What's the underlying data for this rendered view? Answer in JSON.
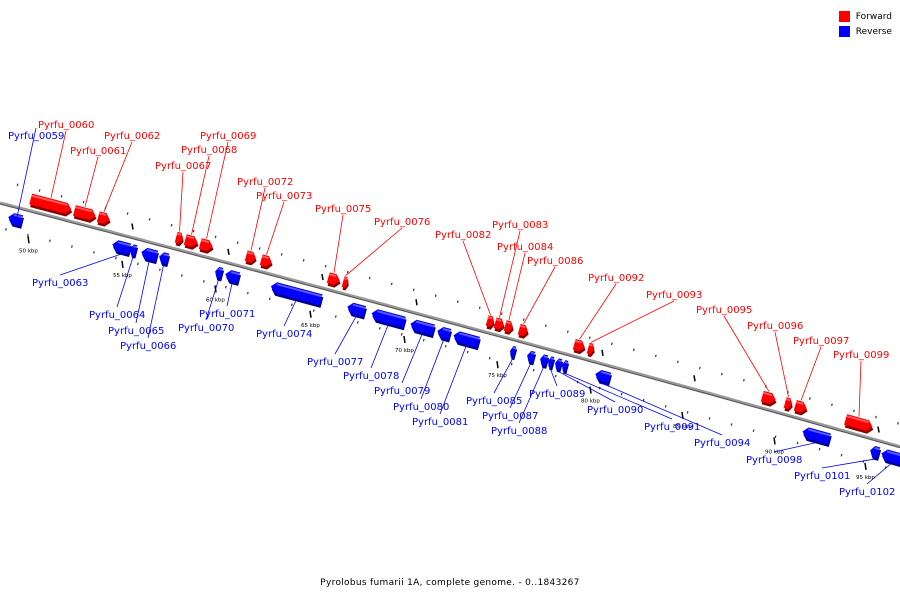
{
  "legend": [
    {
      "label": "Forward",
      "color": "#ff0000"
    },
    {
      "label": "Reverse",
      "color": "#0000ff"
    }
  ],
  "caption": "Pyrolobus fumarii 1A, complete genome. - 0..1843267",
  "colors": {
    "forward": "#ff0000",
    "reverse": "#0000ff",
    "backbone": "#8a8a8a"
  },
  "scale_labels": [
    "50 kbp",
    "55 kbp",
    "60 kbp",
    "65 kbp",
    "70 kbp",
    "75 kbp",
    "80 kbp",
    "85 kbp",
    "90 kbp",
    "95 kbp"
  ],
  "genes": [
    {
      "name": "Pyrfu_0059",
      "strand": "reverse"
    },
    {
      "name": "Pyrfu_0060",
      "strand": "forward"
    },
    {
      "name": "Pyrfu_0061",
      "strand": "forward"
    },
    {
      "name": "Pyrfu_0062",
      "strand": "forward"
    },
    {
      "name": "Pyrfu_0063",
      "strand": "reverse"
    },
    {
      "name": "Pyrfu_0064",
      "strand": "reverse"
    },
    {
      "name": "Pyrfu_0065",
      "strand": "reverse"
    },
    {
      "name": "Pyrfu_0066",
      "strand": "reverse"
    },
    {
      "name": "Pyrfu_0067",
      "strand": "forward"
    },
    {
      "name": "Pyrfu_0068",
      "strand": "forward"
    },
    {
      "name": "Pyrfu_0069",
      "strand": "forward"
    },
    {
      "name": "Pyrfu_0070",
      "strand": "reverse"
    },
    {
      "name": "Pyrfu_0071",
      "strand": "reverse"
    },
    {
      "name": "Pyrfu_0072",
      "strand": "forward"
    },
    {
      "name": "Pyrfu_0073",
      "strand": "forward"
    },
    {
      "name": "Pyrfu_0074",
      "strand": "reverse"
    },
    {
      "name": "Pyrfu_0075",
      "strand": "forward"
    },
    {
      "name": "Pyrfu_0076",
      "strand": "forward"
    },
    {
      "name": "Pyrfu_0077",
      "strand": "reverse"
    },
    {
      "name": "Pyrfu_0078",
      "strand": "reverse"
    },
    {
      "name": "Pyrfu_0079",
      "strand": "reverse"
    },
    {
      "name": "Pyrfu_0080",
      "strand": "reverse"
    },
    {
      "name": "Pyrfu_0081",
      "strand": "reverse"
    },
    {
      "name": "Pyrfu_0082",
      "strand": "forward"
    },
    {
      "name": "Pyrfu_0083",
      "strand": "forward"
    },
    {
      "name": "Pyrfu_0084",
      "strand": "forward"
    },
    {
      "name": "Pyrfu_0085",
      "strand": "reverse"
    },
    {
      "name": "Pyrfu_0086",
      "strand": "forward"
    },
    {
      "name": "Pyrfu_0087",
      "strand": "reverse"
    },
    {
      "name": "Pyrfu_0088",
      "strand": "reverse"
    },
    {
      "name": "Pyrfu_0089",
      "strand": "reverse"
    },
    {
      "name": "Pyrfu_0090",
      "strand": "reverse"
    },
    {
      "name": "Pyrfu_0091",
      "strand": "reverse"
    },
    {
      "name": "Pyrfu_0092",
      "strand": "forward"
    },
    {
      "name": "Pyrfu_0093",
      "strand": "forward"
    },
    {
      "name": "Pyrfu_0094",
      "strand": "reverse"
    },
    {
      "name": "Pyrfu_0095",
      "strand": "forward"
    },
    {
      "name": "Pyrfu_0096",
      "strand": "forward"
    },
    {
      "name": "Pyrfu_0097",
      "strand": "forward"
    },
    {
      "name": "Pyrfu_0098",
      "strand": "reverse"
    },
    {
      "name": "Pyrfu_0099",
      "strand": "forward"
    },
    {
      "name": "Pyrfu_0101",
      "strand": "reverse"
    },
    {
      "name": "Pyrfu_0102",
      "strand": "reverse"
    }
  ]
}
